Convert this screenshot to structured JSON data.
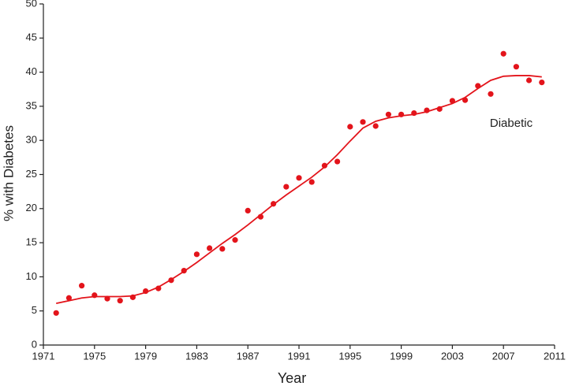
{
  "chart_data": {
    "type": "scatter",
    "x_label": "Year",
    "y_label": "% with Diabetes",
    "annotation": "Diabetic",
    "x": [
      1972,
      1973,
      1974,
      1975,
      1976,
      1977,
      1978,
      1979,
      1980,
      1981,
      1982,
      1983,
      1984,
      1985,
      1986,
      1987,
      1988,
      1989,
      1990,
      1991,
      1992,
      1993,
      1994,
      1995,
      1996,
      1997,
      1998,
      1999,
      2000,
      2001,
      2002,
      2003,
      2004,
      2005,
      2006,
      2007,
      2008,
      2009,
      2010
    ],
    "series": [
      {
        "style": "points",
        "color": "#e3141b",
        "values": [
          4.7,
          6.9,
          8.7,
          7.3,
          6.8,
          6.5,
          7.0,
          7.9,
          8.3,
          9.5,
          10.9,
          13.3,
          14.2,
          14.1,
          15.4,
          19.7,
          18.8,
          20.7,
          23.2,
          24.5,
          23.9,
          26.3,
          26.9,
          32.0,
          32.7,
          32.1,
          33.8,
          33.8,
          34.0,
          34.4,
          34.6,
          35.8,
          35.9,
          38.0,
          36.8,
          42.7,
          40.8,
          38.8,
          38.5
        ]
      },
      {
        "style": "line",
        "color": "#e3141b",
        "values": [
          6.1,
          6.5,
          6.9,
          7.1,
          7.1,
          7.1,
          7.2,
          7.7,
          8.5,
          9.6,
          10.8,
          12.1,
          13.5,
          14.9,
          16.2,
          17.6,
          19.1,
          20.6,
          22.0,
          23.3,
          24.6,
          26.1,
          27.9,
          29.9,
          31.8,
          32.8,
          33.3,
          33.6,
          33.8,
          34.2,
          34.8,
          35.4,
          36.3,
          37.6,
          38.8,
          39.4,
          39.5,
          39.5,
          39.3
        ]
      }
    ],
    "xlim": [
      1971,
      2011
    ],
    "xticks": [
      1971,
      1975,
      1979,
      1983,
      1987,
      1991,
      1995,
      1999,
      2003,
      2007,
      2011
    ],
    "ylim": [
      0,
      50
    ],
    "yticks": [
      0,
      5,
      10,
      15,
      20,
      25,
      30,
      35,
      40,
      45,
      50
    ],
    "grid": false
  }
}
